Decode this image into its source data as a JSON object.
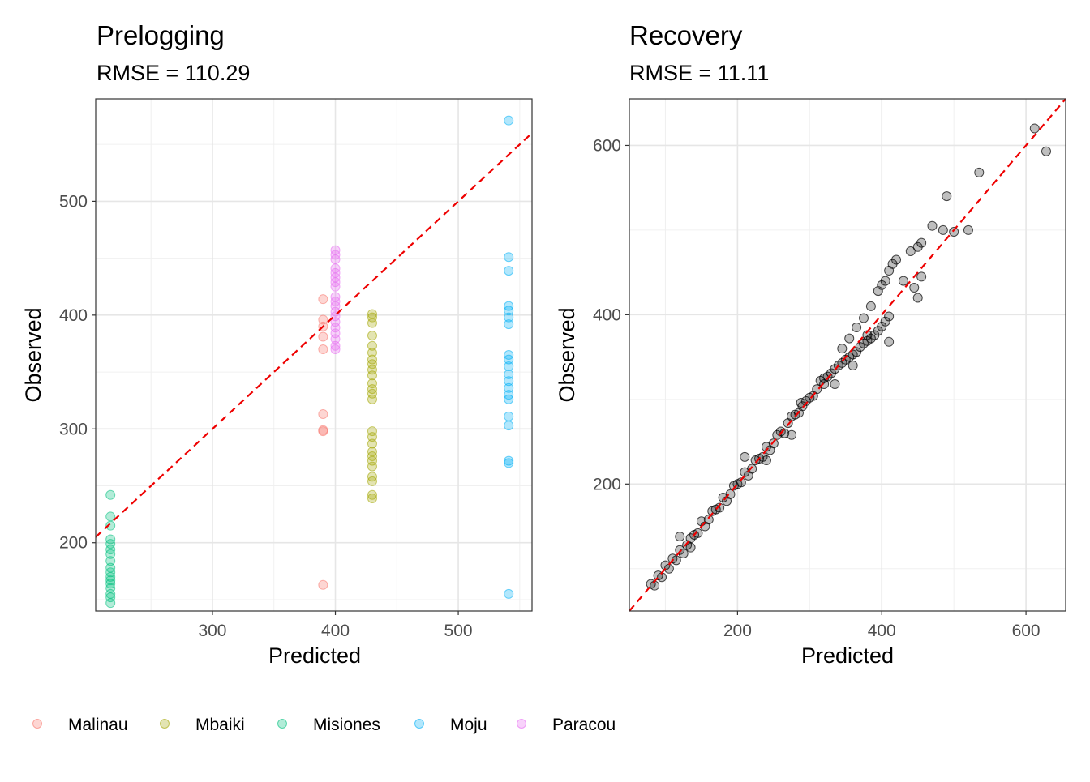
{
  "chart_data": [
    {
      "type": "scatter",
      "title": "Prelogging",
      "subtitle": "RMSE = 110.29",
      "xlabel": "Predicted",
      "ylabel": "Observed",
      "xlim": [
        205,
        560
      ],
      "ylim": [
        140,
        590
      ],
      "xticks": [
        300,
        400,
        500
      ],
      "yticks": [
        200,
        300,
        400,
        500
      ],
      "grid": true,
      "reference_line": {
        "type": "y=x",
        "color": "#ee0000",
        "style": "dashed"
      },
      "series": [
        {
          "name": "Malinau",
          "color": "#F8766D",
          "x": 390,
          "y": [
            414,
            396,
            390,
            381,
            370,
            313,
            299,
            298,
            163
          ]
        },
        {
          "name": "Mbaiki",
          "color": "#A3A500",
          "x": 430,
          "y": [
            401,
            398,
            393,
            382,
            373,
            367,
            361,
            357,
            352,
            347,
            340,
            335,
            331,
            326,
            298,
            293,
            287,
            280,
            276,
            272,
            267,
            258,
            254,
            242,
            239
          ]
        },
        {
          "name": "Misiones",
          "color": "#00BF7D",
          "x": 217,
          "y": [
            242,
            223,
            215,
            203,
            199,
            194,
            190,
            184,
            178,
            174,
            170,
            167,
            164,
            160,
            155,
            152,
            147
          ]
        },
        {
          "name": "Moju",
          "color": "#00B0F6",
          "x": 541,
          "y": [
            571,
            451,
            439,
            408,
            404,
            398,
            392,
            365,
            361,
            355,
            348,
            342,
            336,
            330,
            326,
            311,
            303,
            272,
            270,
            155
          ]
        },
        {
          "name": "Paracou",
          "color": "#E76BF3",
          "x": 400,
          "y": [
            457,
            453,
            449,
            441,
            437,
            433,
            429,
            425,
            416,
            412,
            408,
            403,
            399,
            394,
            389,
            384,
            379,
            373,
            370
          ]
        }
      ]
    },
    {
      "type": "scatter",
      "title": "Recovery",
      "subtitle": "RMSE = 11.11",
      "xlabel": "Predicted",
      "ylabel": "Observed",
      "xlim": [
        50,
        655
      ],
      "ylim": [
        50,
        655
      ],
      "xticks": [
        200,
        400,
        600
      ],
      "yticks": [
        200,
        400,
        600
      ],
      "grid": true,
      "point_color": "#000000",
      "reference_line": {
        "type": "y=x",
        "color": "#ee0000",
        "style": "dashed"
      },
      "points": [
        [
          80,
          82
        ],
        [
          85,
          80
        ],
        [
          90,
          92
        ],
        [
          95,
          90
        ],
        [
          100,
          104
        ],
        [
          105,
          100
        ],
        [
          110,
          112
        ],
        [
          115,
          110
        ],
        [
          120,
          122
        ],
        [
          125,
          118
        ],
        [
          130,
          128
        ],
        [
          135,
          136
        ],
        [
          140,
          140
        ],
        [
          145,
          142
        ],
        [
          150,
          156
        ],
        [
          155,
          150
        ],
        [
          160,
          158
        ],
        [
          165,
          168
        ],
        [
          170,
          170
        ],
        [
          175,
          172
        ],
        [
          180,
          184
        ],
        [
          185,
          180
        ],
        [
          190,
          188
        ],
        [
          195,
          198
        ],
        [
          200,
          200
        ],
        [
          205,
          202
        ],
        [
          210,
          214
        ],
        [
          215,
          210
        ],
        [
          220,
          218
        ],
        [
          225,
          228
        ],
        [
          230,
          230
        ],
        [
          235,
          232
        ],
        [
          240,
          244
        ],
        [
          245,
          240
        ],
        [
          250,
          248
        ],
        [
          255,
          258
        ],
        [
          260,
          262
        ],
        [
          265,
          260
        ],
        [
          270,
          272
        ],
        [
          275,
          280
        ],
        [
          280,
          282
        ],
        [
          285,
          284
        ],
        [
          290,
          292
        ],
        [
          295,
          298
        ],
        [
          300,
          302
        ],
        [
          305,
          304
        ],
        [
          310,
          312
        ],
        [
          315,
          322
        ],
        [
          320,
          325
        ],
        [
          325,
          327
        ],
        [
          330,
          331
        ],
        [
          335,
          336
        ],
        [
          340,
          340
        ],
        [
          345,
          343
        ],
        [
          350,
          347
        ],
        [
          355,
          350
        ],
        [
          360,
          353
        ],
        [
          365,
          356
        ],
        [
          370,
          362
        ],
        [
          375,
          366
        ],
        [
          380,
          369
        ],
        [
          385,
          372
        ],
        [
          390,
          376
        ],
        [
          395,
          381
        ],
        [
          400,
          386
        ],
        [
          405,
          392
        ],
        [
          410,
          398
        ],
        [
          345,
          360
        ],
        [
          355,
          372
        ],
        [
          365,
          385
        ],
        [
          375,
          396
        ],
        [
          385,
          410
        ],
        [
          395,
          428
        ],
        [
          400,
          435
        ],
        [
          405,
          440
        ],
        [
          410,
          452
        ],
        [
          415,
          460
        ],
        [
          420,
          465
        ],
        [
          440,
          475
        ],
        [
          450,
          480
        ],
        [
          455,
          485
        ],
        [
          430,
          440
        ],
        [
          445,
          432
        ],
        [
          455,
          445
        ],
        [
          450,
          420
        ],
        [
          410,
          368
        ],
        [
          120,
          138
        ],
        [
          135,
          125
        ],
        [
          210,
          232
        ],
        [
          240,
          228
        ],
        [
          275,
          258
        ],
        [
          288,
          296
        ],
        [
          320,
          318
        ],
        [
          335,
          318
        ],
        [
          360,
          340
        ],
        [
          380,
          376
        ],
        [
          470,
          505
        ],
        [
          490,
          540
        ],
        [
          485,
          500
        ],
        [
          500,
          498
        ],
        [
          520,
          500
        ],
        [
          535,
          568
        ],
        [
          612,
          620
        ],
        [
          628,
          593
        ]
      ]
    }
  ]
}
